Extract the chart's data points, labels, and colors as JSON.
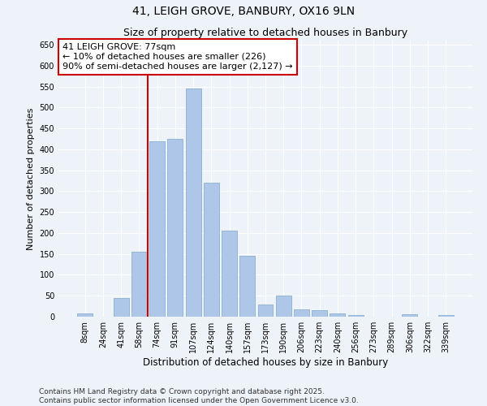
{
  "title": "41, LEIGH GROVE, BANBURY, OX16 9LN",
  "subtitle": "Size of property relative to detached houses in Banbury",
  "xlabel": "Distribution of detached houses by size in Banbury",
  "ylabel": "Number of detached properties",
  "categories": [
    "8sqm",
    "24sqm",
    "41sqm",
    "58sqm",
    "74sqm",
    "91sqm",
    "107sqm",
    "124sqm",
    "140sqm",
    "157sqm",
    "173sqm",
    "190sqm",
    "206sqm",
    "223sqm",
    "240sqm",
    "256sqm",
    "273sqm",
    "289sqm",
    "306sqm",
    "322sqm",
    "339sqm"
  ],
  "values": [
    8,
    0,
    45,
    155,
    420,
    425,
    545,
    320,
    205,
    145,
    30,
    50,
    17,
    15,
    8,
    3,
    0,
    0,
    5,
    0,
    3
  ],
  "bar_color": "#aec6e8",
  "bar_edge_color": "#8ab0d4",
  "vline_x_index": 4,
  "vline_color": "#cc0000",
  "annotation_text": "41 LEIGH GROVE: 77sqm\n← 10% of detached houses are smaller (226)\n90% of semi-detached houses are larger (2,127) →",
  "annotation_box_color": "#ffffff",
  "annotation_box_edge_color": "#cc0000",
  "ylim": [
    0,
    660
  ],
  "yticks": [
    0,
    50,
    100,
    150,
    200,
    250,
    300,
    350,
    400,
    450,
    500,
    550,
    600,
    650
  ],
  "background_color": "#eef2f9",
  "grid_color": "#ffffff",
  "footer_text": "Contains HM Land Registry data © Crown copyright and database right 2025.\nContains public sector information licensed under the Open Government Licence v3.0.",
  "title_fontsize": 10,
  "subtitle_fontsize": 9,
  "xlabel_fontsize": 8.5,
  "ylabel_fontsize": 8,
  "tick_fontsize": 7,
  "annotation_fontsize": 8,
  "footer_fontsize": 6.5
}
